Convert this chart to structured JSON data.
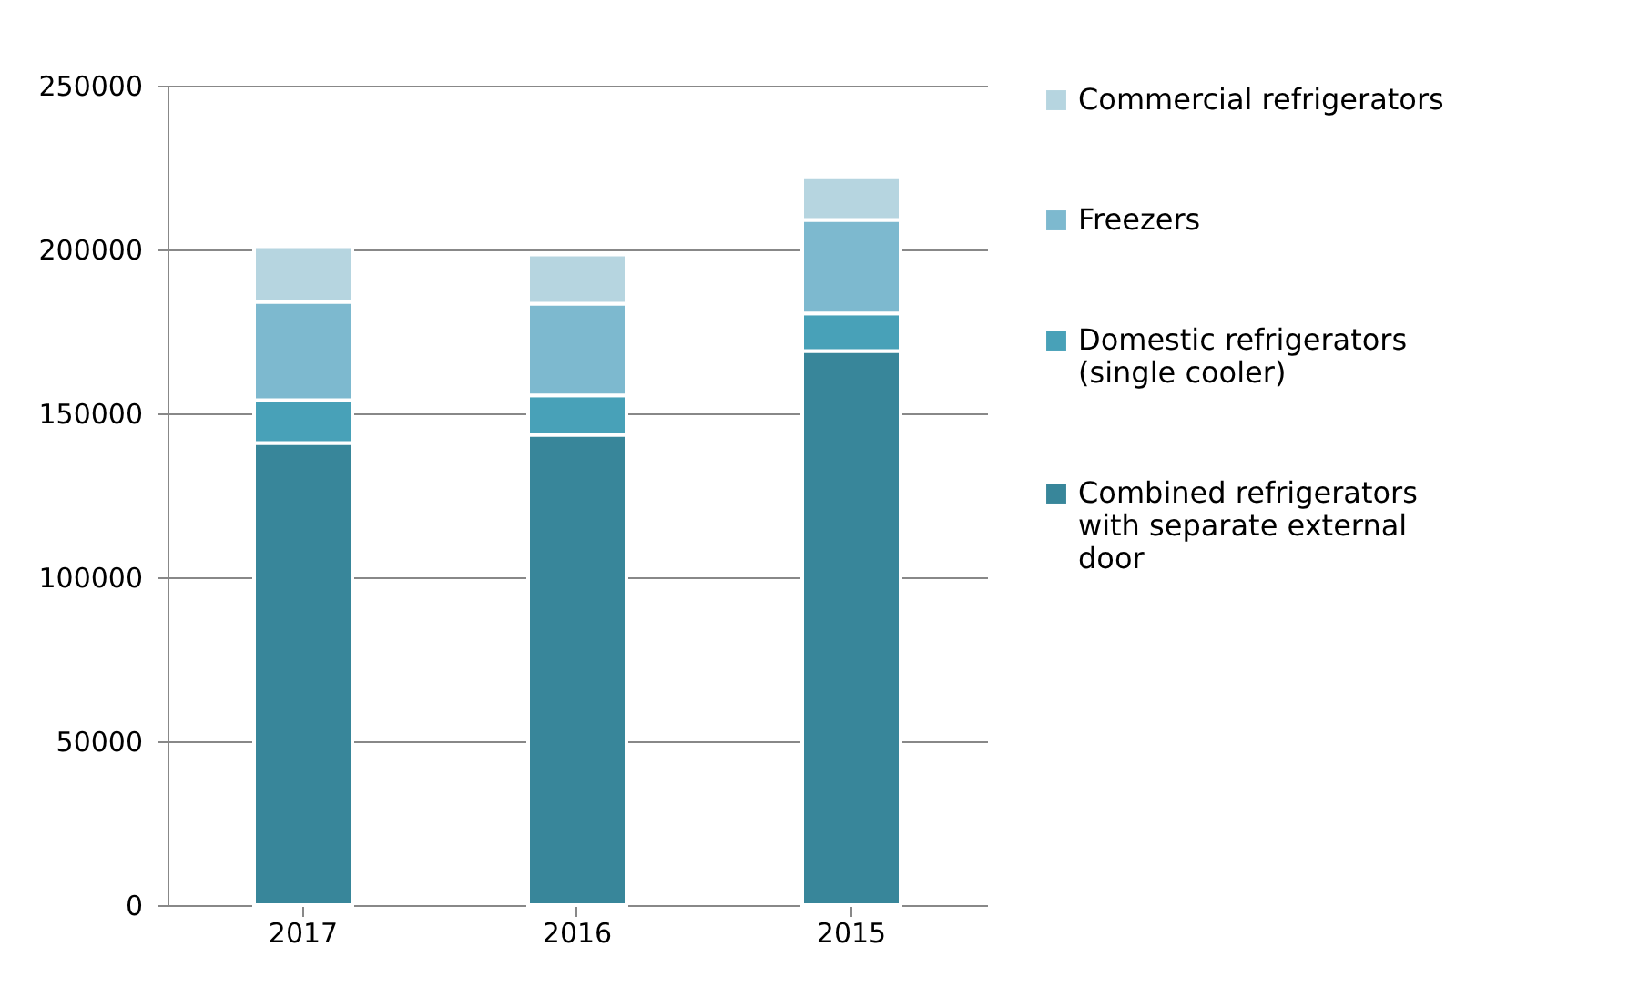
{
  "chart_data": {
    "type": "bar",
    "stacked": true,
    "categories": [
      "2017",
      "2016",
      "2015"
    ],
    "series": [
      {
        "name": "Combined refrigerators with separate external door",
        "color": "#38869a",
        "values": [
          141000,
          143500,
          169000
        ]
      },
      {
        "name": "Domestic refrigerators (single cooler)",
        "color": "#48a1b8",
        "values": [
          13000,
          12000,
          11500
        ]
      },
      {
        "name": "Freezers",
        "color": "#7db9cf",
        "values": [
          30000,
          28000,
          28500
        ]
      },
      {
        "name": "Commercial refrigerators",
        "color": "#b6d5e0",
        "values": [
          17000,
          15000,
          13000
        ]
      }
    ],
    "ylim": [
      0,
      250000
    ],
    "yticks": [
      0,
      50000,
      100000,
      150000,
      200000,
      250000
    ],
    "grid": "y",
    "legend": "right"
  }
}
